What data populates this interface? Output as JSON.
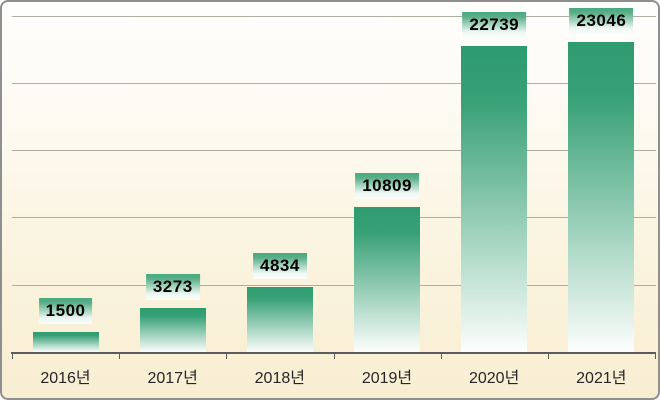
{
  "chart_data": {
    "type": "bar",
    "categories": [
      "2016년",
      "2017년",
      "2018년",
      "2019년",
      "2020년",
      "2021년"
    ],
    "values": [
      1500,
      3273,
      4834,
      10809,
      22739,
      23046
    ],
    "data_labels": [
      "1500",
      "3273",
      "4834",
      "10809",
      "22739",
      "23046"
    ],
    "title": "",
    "xlabel": "",
    "ylabel": "",
    "ylim": [
      0,
      25000
    ],
    "gridline_interval": 5000,
    "grid": "horizontal",
    "legend": "none",
    "y_tick_labels_visible": false,
    "data_labels_visible": true
  },
  "colors": {
    "bar_gradient_top": "#2e9b6f",
    "bar_gradient_bottom": "#fdfefd",
    "label_box_gradient_top": "#4aa87f",
    "label_box_gradient_bottom": "#fafdfb",
    "label_text": "#000000",
    "axis_text": "#262626",
    "gridline": "#b2aba1",
    "axis_line": "#5b5b5b",
    "border": "#8f8f8f",
    "background_top": "#fefefd",
    "background_bottom": "#f8eed2"
  }
}
